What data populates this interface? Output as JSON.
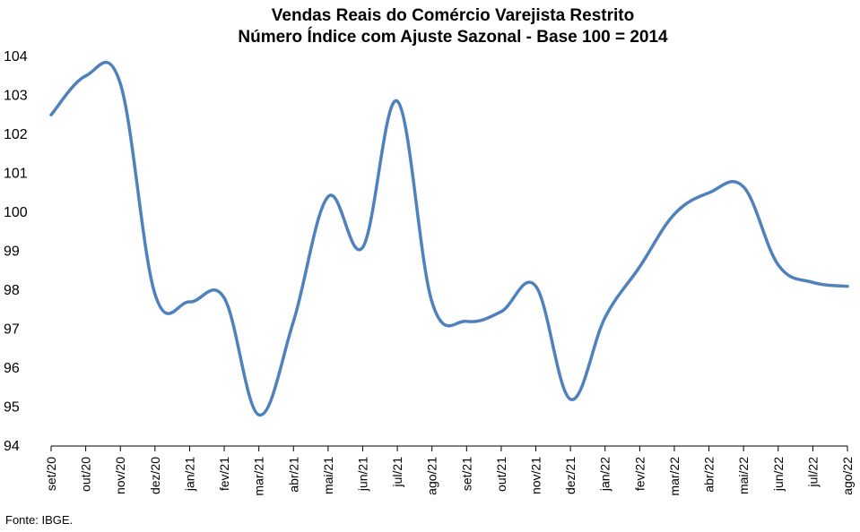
{
  "chart_data": {
    "type": "line",
    "title": "Vendas Reais do Comércio Varejista Restrito",
    "subtitle": "Número Índice com Ajuste Sazonal - Base 100 = 2014",
    "xlabel": "",
    "ylabel": "",
    "ylim": [
      94,
      104
    ],
    "yticks": [
      "94",
      "95",
      "96",
      "97",
      "98",
      "99",
      "100",
      "101",
      "102",
      "103",
      "104"
    ],
    "grid": false,
    "categories": [
      "set/20",
      "out/20",
      "nov/20",
      "dez/20",
      "jan/21",
      "fev/21",
      "mar/21",
      "abr/21",
      "mai/21",
      "jun/21",
      "jul/21",
      "ago/21",
      "set/21",
      "out/21",
      "nov/21",
      "dez/21",
      "jan/22",
      "fev/22",
      "mar/22",
      "abr/22",
      "mai/22",
      "jun/22",
      "jul/22",
      "ago/22"
    ],
    "series": [
      {
        "color": "#4F81BD",
        "values": [
          102.5,
          103.5,
          103.3,
          97.9,
          97.7,
          97.8,
          94.8,
          97.2,
          100.4,
          99.1,
          102.85,
          97.7,
          97.2,
          97.45,
          98.1,
          95.2,
          97.3,
          98.6,
          99.95,
          100.5,
          100.65,
          98.65,
          98.2,
          98.1
        ]
      }
    ]
  },
  "source": "Fonte: IBGE."
}
